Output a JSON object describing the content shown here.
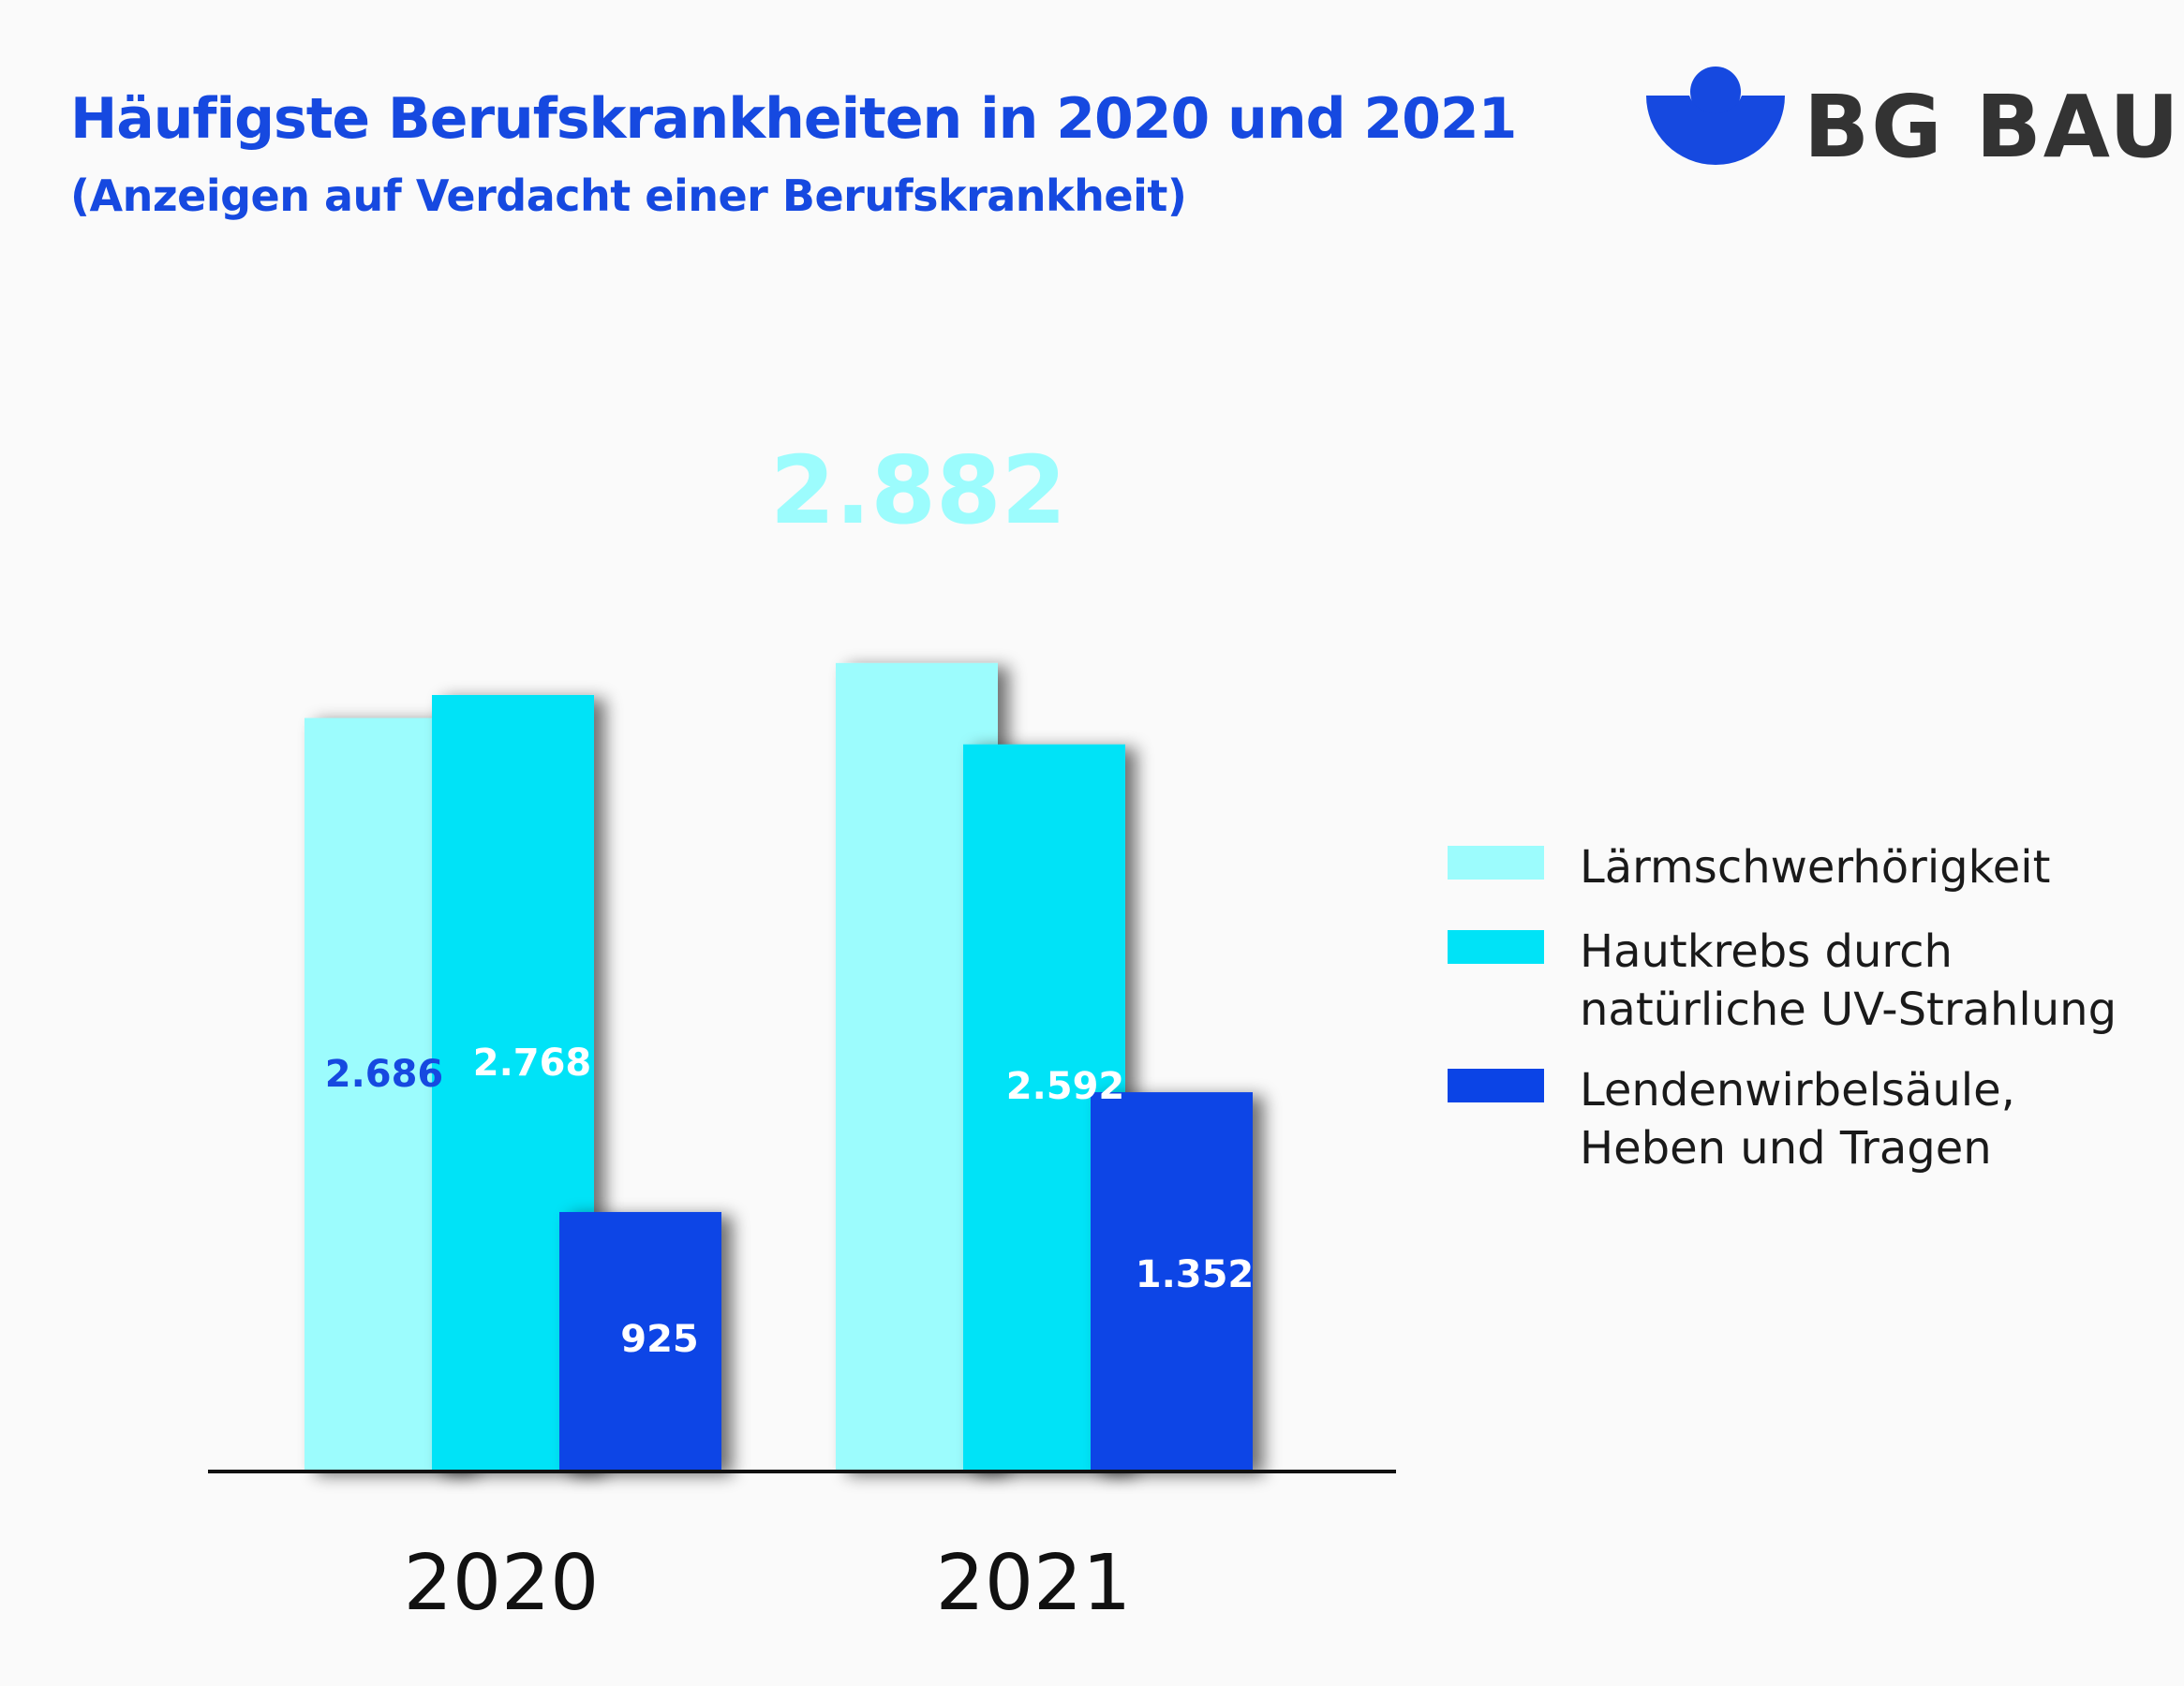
{
  "header": {
    "title": "Häufigste Berufskrankheiten in 2020 und 2021",
    "subtitle": "(Anzeigen auf Verdacht einer Berufskrankheit)"
  },
  "logo": {
    "text": "BG BAU",
    "color": "#1649e0"
  },
  "colors": {
    "laerm": "#9cfcfd",
    "hautkrebs": "#00e3f7",
    "lws": "#0b44e6",
    "title": "#1649e0"
  },
  "chart_data": {
    "type": "bar",
    "title": "Häufigste Berufskrankheiten in 2020 und 2021",
    "xlabel": "",
    "ylabel": "",
    "ylim": [
      0,
      2882
    ],
    "categories": [
      "2020",
      "2021"
    ],
    "series": [
      {
        "name": "Lärmschwerhörigkeit",
        "values": [
          2686,
          2882
        ],
        "labels": [
          "2.686",
          "2.882"
        ],
        "color": "#9cfcfd",
        "label_color": "#1649e0"
      },
      {
        "name": "Hautkrebs durch\nnatürliche UV-Strahlung",
        "values": [
          2768,
          2592
        ],
        "labels": [
          "2.768",
          "2.592"
        ],
        "color": "#00e3f7",
        "label_color": "#ffffff"
      },
      {
        "name": "Lendenwirbelsäule,\nHeben und Tragen",
        "values": [
          925,
          1352
        ],
        "labels": [
          "925",
          "1.352"
        ],
        "color": "#0b44e6",
        "label_color": "#ffffff"
      }
    ],
    "grid": false,
    "legend": "right"
  }
}
